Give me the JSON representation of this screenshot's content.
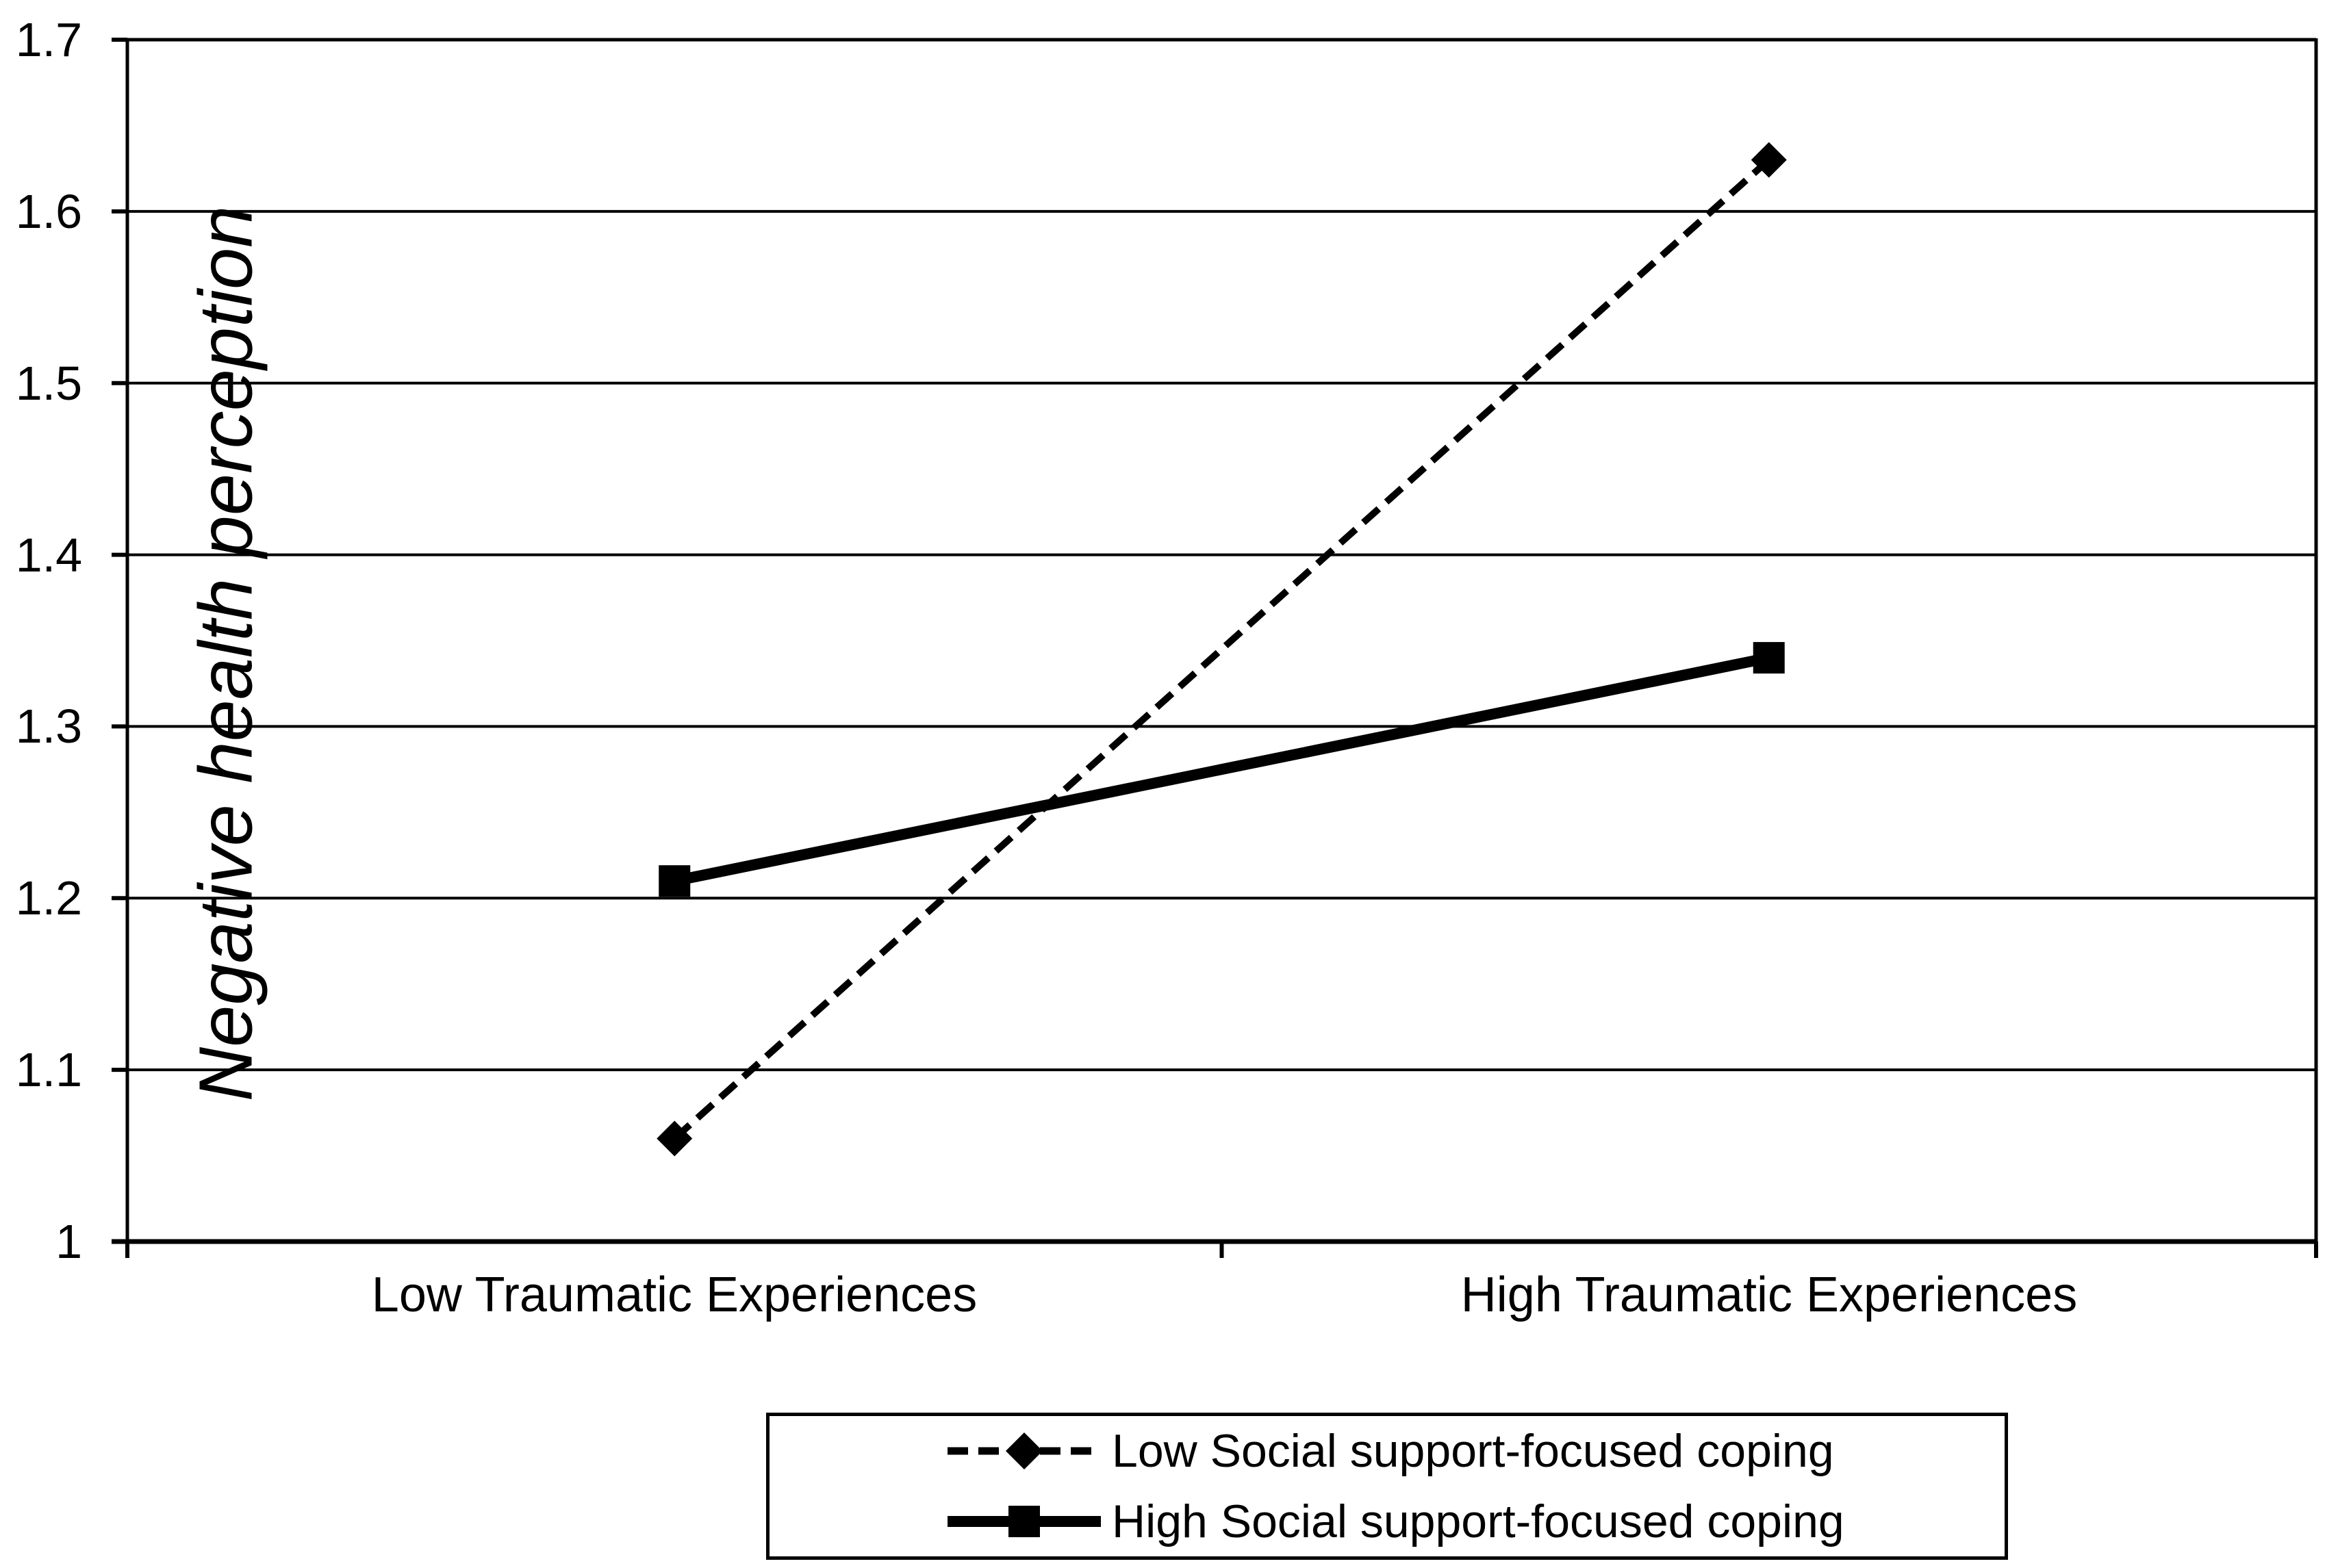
{
  "chart_data": {
    "type": "line",
    "title": "",
    "categories": [
      "Low Traumatic Experiences",
      "High Traumatic Experiences"
    ],
    "series": [
      {
        "name": "Low Social support-focused coping",
        "values": [
          1.06,
          1.63
        ],
        "line_style": "dashed",
        "marker": "diamond"
      },
      {
        "name": "High Social support-focused coping",
        "values": [
          1.21,
          1.34
        ],
        "line_style": "solid",
        "marker": "square"
      }
    ],
    "xlabel": "",
    "ylabel": "Negative health perception",
    "ylim": [
      1.0,
      1.7
    ],
    "ytick_step": 0.1,
    "ytick_labels": [
      "1",
      "1.1",
      "1.2",
      "1.3",
      "1.4",
      "1.5",
      "1.6",
      "1.7"
    ],
    "grid": "horizontal",
    "legend_position": "bottom-center",
    "colors": {
      "foreground": "#000000",
      "background": "#ffffff"
    }
  }
}
